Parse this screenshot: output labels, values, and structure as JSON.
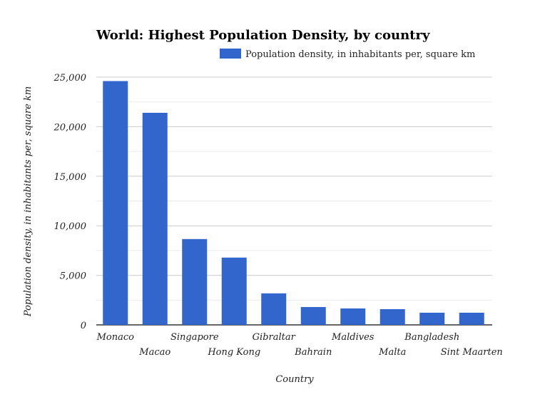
{
  "chart_data": {
    "type": "bar",
    "title": "World: Highest Population Density, by country",
    "xlabel": "Country",
    "ylabel": "Population density, in inhabitants per, square km",
    "legend": {
      "position": "top-right",
      "entries": [
        "Population density, in inhabitants per, square km"
      ]
    },
    "categories": [
      "Monaco",
      "Macao",
      "Singapore",
      "Hong Kong",
      "Gibraltar",
      "Bahrain",
      "Maldives",
      "Malta",
      "Bangladesh",
      "Sint Maarten"
    ],
    "series": [
      {
        "name": "Population density, in inhabitants per, square km",
        "color": "#3366cc",
        "values": [
          24600,
          21400,
          8660,
          6790,
          3180,
          1800,
          1660,
          1590,
          1230,
          1230
        ]
      }
    ],
    "ylim": [
      0,
      25000
    ],
    "yticks": [
      0,
      5000,
      10000,
      15000,
      20000,
      25000
    ],
    "ytick_labels": [
      "0",
      "5,000",
      "10,000",
      "15,000",
      "20,000",
      "25,000"
    ],
    "grid": true
  }
}
